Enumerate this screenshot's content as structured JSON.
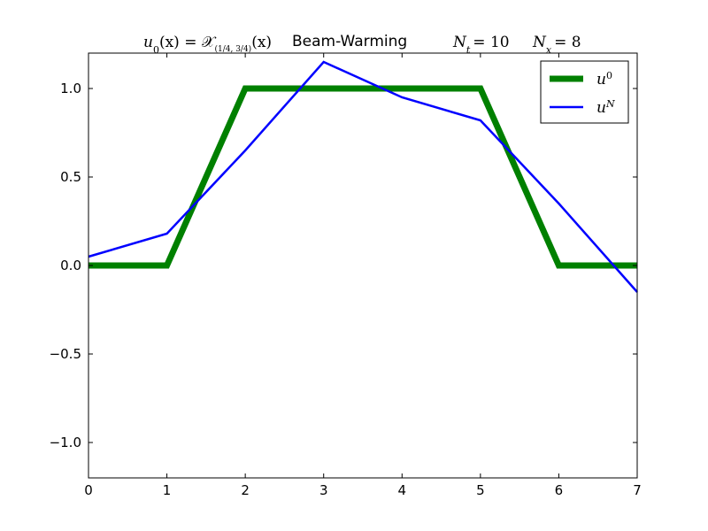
{
  "chart_data": {
    "type": "line",
    "title": {
      "condition_left": "u",
      "condition_left_sub": "0",
      "condition_mid": "(x) = 𝒳",
      "condition_sub": "(1/4, 3/4)",
      "condition_right": "(x)",
      "method": "Beam-Warming",
      "nt_symbol": "N",
      "nt_sub": "t",
      "nt_value": "= 10",
      "nx_symbol": "N",
      "nx_sub": "x",
      "nx_value": "= 8"
    },
    "xlim": [
      0,
      7
    ],
    "ylim": [
      -1.2,
      1.2
    ],
    "x_ticks": [
      0,
      1,
      2,
      3,
      4,
      5,
      6,
      7
    ],
    "x_tick_labels": [
      "0",
      "1",
      "2",
      "3",
      "4",
      "5",
      "6",
      "7"
    ],
    "y_ticks": [
      -1.0,
      -0.5,
      0.0,
      0.5,
      1.0
    ],
    "y_tick_labels": [
      "−1.0",
      "−0.5",
      "0.0",
      "0.5",
      "1.0"
    ],
    "grid": false,
    "legend_position": "top-right",
    "series": [
      {
        "name": "u",
        "name_sup": "0",
        "color": "#008000",
        "line_width": "thick",
        "x": [
          0,
          1,
          2,
          3,
          4,
          5,
          6,
          7
        ],
        "y": [
          0.0,
          0.0,
          1.0,
          1.0,
          1.0,
          1.0,
          0.0,
          0.0
        ]
      },
      {
        "name": "u",
        "name_sup": "N",
        "color": "#0000ff",
        "line_width": "normal",
        "x": [
          0,
          1,
          2,
          3,
          4,
          5,
          6,
          7
        ],
        "y": [
          0.05,
          0.18,
          0.65,
          1.15,
          0.95,
          0.82,
          0.35,
          -0.15
        ]
      }
    ]
  }
}
